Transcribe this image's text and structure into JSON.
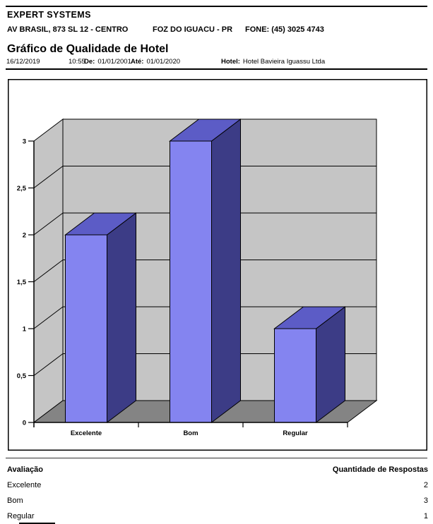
{
  "header": {
    "company": "EXPERT SYSTEMS",
    "address": "AV BRASIL, 873 SL 12 - CENTRO",
    "city": "FOZ DO IGUACU - PR",
    "phone": "FONE: (45) 3025 4743",
    "title": "Gráfico de Qualidade de Hotel",
    "date": "16/12/2019",
    "time": "10:55",
    "from_label": "De:",
    "from_value": "01/01/2001",
    "to_label": "Até:",
    "to_value": "01/01/2020",
    "hotel_label": "Hotel:",
    "hotel_value": "Hotel Bavieira Iguassu Ltda"
  },
  "chart_data": {
    "type": "bar",
    "style": "3d-column",
    "categories": [
      "Excelente",
      "Bom",
      "Regular"
    ],
    "values": [
      2,
      3,
      1
    ],
    "y_ticks": [
      "0",
      "0,5",
      "1",
      "1,5",
      "2",
      "2,5",
      "3"
    ],
    "ylim": [
      0,
      3
    ],
    "y_step": 0.5,
    "grid": "horizontal",
    "legend": "none",
    "colors": {
      "bar_front": "#8484f0",
      "bar_top": "#5c5cc6",
      "bar_side": "#3c3c86",
      "wall": "#c5c5c5",
      "floor": "#848484",
      "outline": "#000000"
    }
  },
  "table": {
    "col1_header": "Avaliação",
    "col2_header": "Quantidade de Respostas",
    "rows": [
      {
        "label": "Excelente",
        "value": "2"
      },
      {
        "label": "Bom",
        "value": "3"
      },
      {
        "label": "Regular",
        "value": "1"
      }
    ]
  }
}
